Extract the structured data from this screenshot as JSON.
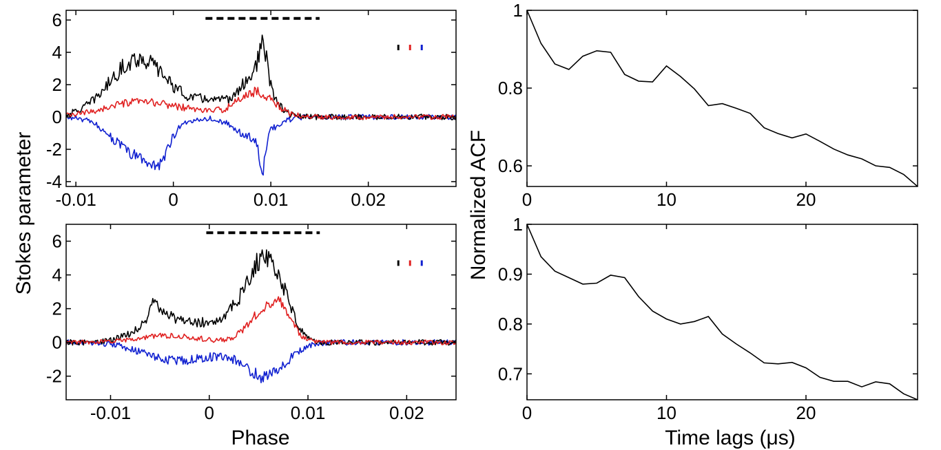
{
  "labels": {
    "left_ylabel": "Stokes parameter",
    "left_xlabel": "Phase",
    "right_ylabel": "Normalized ACF",
    "right_xlabel": "Time lags (μs)"
  },
  "colors": {
    "I": "#000000",
    "L": "#e02020",
    "V": "#1020d0"
  },
  "chart_data": [
    {
      "id": "top-left",
      "type": "line",
      "xlim": [
        -0.011,
        0.029
      ],
      "ylim": [
        -4.3,
        6.6
      ],
      "xticks": [
        -0.01,
        0,
        0.01,
        0.02
      ],
      "xtick_labels": [
        "-0.01",
        "0",
        "0.01",
        "0.02"
      ],
      "yticks": [
        -4,
        -2,
        0,
        2,
        4,
        6
      ],
      "ytick_labels": [
        "-4",
        "-2",
        "0",
        "2",
        "4",
        "6"
      ],
      "onpulse_bar": [
        0.0033,
        0.015
      ],
      "bar_y": 6.1,
      "legend_y": 4.3,
      "series": [
        {
          "name": "I",
          "peaks": [
            [
              -0.0035,
              3.6,
              0.003
            ],
            [
              0.0085,
              2.6,
              0.0015
            ],
            [
              0.0092,
              2.2,
              0.0004
            ],
            [
              0.004,
              0.9,
              0.002
            ]
          ],
          "noise": 0.32
        },
        {
          "name": "L",
          "peaks": [
            [
              -0.0035,
              0.9,
              0.0035
            ],
            [
              0.0085,
              1.5,
              0.0018
            ],
            [
              0.003,
              0.25,
              0.003
            ]
          ],
          "noise": 0.28
        },
        {
          "name": "V",
          "peaks": [
            [
              -0.0035,
              -2.4,
              0.0025
            ],
            [
              -0.0015,
              -1.2,
              0.0009
            ],
            [
              0.0082,
              -1.3,
              0.0018
            ],
            [
              0.0091,
              -2.4,
              0.0003
            ]
          ],
          "noise": 0.28
        }
      ]
    },
    {
      "id": "bottom-left",
      "type": "line",
      "xlim": [
        -0.0145,
        0.025
      ],
      "ylim": [
        -3.4,
        7.0
      ],
      "xticks": [
        -0.01,
        0,
        0.01,
        0.02
      ],
      "xtick_labels": [
        "-0.01",
        "0",
        "0.01",
        "0.02"
      ],
      "yticks": [
        -2,
        0,
        2,
        4,
        6
      ],
      "ytick_labels": [
        "-2",
        "0",
        "2",
        "4",
        "6"
      ],
      "onpulse_bar": [
        -0.0003,
        0.0112
      ],
      "bar_y": 6.5,
      "legend_y": 4.7,
      "series": [
        {
          "name": "I",
          "peaks": [
            [
              -0.0045,
              1.5,
              0.0025
            ],
            [
              0.001,
              1.0,
              0.002
            ],
            [
              0.005,
              3.6,
              0.0018
            ],
            [
              0.0068,
              2.2,
              0.0015
            ],
            [
              -0.0055,
              1.0,
              0.0005
            ]
          ],
          "noise": 0.3
        },
        {
          "name": "L",
          "peaks": [
            [
              -0.004,
              0.4,
              0.003
            ],
            [
              0.006,
              2.1,
              0.0018
            ],
            [
              0.0075,
              0.7,
              0.0008
            ]
          ],
          "noise": 0.25
        },
        {
          "name": "V",
          "peaks": [
            [
              -0.004,
              -0.9,
              0.003
            ],
            [
              0.001,
              -0.5,
              0.003
            ],
            [
              0.0058,
              -1.9,
              0.002
            ]
          ],
          "noise": 0.3
        }
      ]
    },
    {
      "id": "top-right",
      "type": "line",
      "xlim": [
        0,
        28
      ],
      "ylim": [
        0.547,
        1.0
      ],
      "xticks": [
        0,
        10,
        20
      ],
      "xtick_labels": [
        "0",
        "10",
        "20"
      ],
      "yticks": [
        0.6,
        0.8,
        1.0
      ],
      "ytick_labels": [
        "0.6",
        "0.8",
        "1"
      ],
      "x": [
        0,
        1,
        2,
        3,
        4,
        5,
        6,
        7,
        8,
        9,
        10,
        11,
        12,
        13,
        14,
        15,
        16,
        17,
        18,
        19,
        20,
        21,
        22,
        23,
        24,
        25,
        26,
        27,
        28
      ],
      "y": [
        1.0,
        0.915,
        0.862,
        0.848,
        0.882,
        0.896,
        0.892,
        0.835,
        0.818,
        0.816,
        0.857,
        0.83,
        0.798,
        0.755,
        0.76,
        0.748,
        0.735,
        0.698,
        0.683,
        0.672,
        0.682,
        0.663,
        0.643,
        0.628,
        0.618,
        0.6,
        0.596,
        0.578,
        0.547
      ]
    },
    {
      "id": "bottom-right",
      "type": "line",
      "xlim": [
        0,
        28
      ],
      "ylim": [
        0.648,
        1.0
      ],
      "xticks": [
        0,
        10,
        20
      ],
      "xtick_labels": [
        "0",
        "10",
        "20"
      ],
      "yticks": [
        0.7,
        0.8,
        0.9,
        1.0
      ],
      "ytick_labels": [
        "0.7",
        "0.8",
        "0.9",
        "1"
      ],
      "x": [
        0,
        1,
        2,
        3,
        4,
        5,
        6,
        7,
        8,
        9,
        10,
        11,
        12,
        13,
        14,
        15,
        16,
        17,
        18,
        19,
        20,
        21,
        22,
        23,
        24,
        25,
        26,
        27,
        28
      ],
      "y": [
        1.0,
        0.935,
        0.906,
        0.893,
        0.88,
        0.882,
        0.898,
        0.893,
        0.855,
        0.826,
        0.81,
        0.8,
        0.805,
        0.815,
        0.78,
        0.76,
        0.742,
        0.722,
        0.72,
        0.723,
        0.712,
        0.693,
        0.685,
        0.685,
        0.674,
        0.684,
        0.68,
        0.66,
        0.648
      ]
    }
  ]
}
